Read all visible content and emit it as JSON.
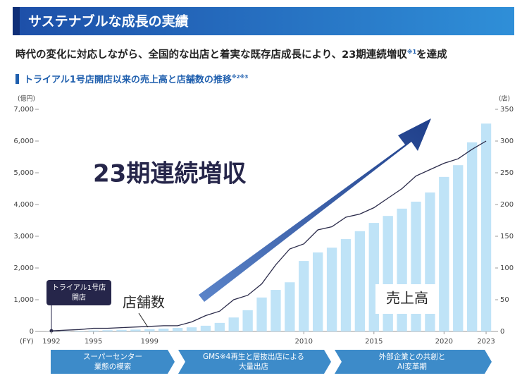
{
  "header": {
    "title": "サステナブルな成長の実績"
  },
  "subtitle": {
    "text": "時代の変化に対応しながら、全国的な出店と着実な既存店成長により、23期連続増収",
    "note": "※1",
    "tail": "を達成"
  },
  "chart_data": {
    "type": "bar_line",
    "title": "トライアル1号店開店以来の売上高と店舗数の推移",
    "title_note": "※2※3",
    "y_unit": "(億円)",
    "y2_unit": "(店)",
    "x_unit": "(FY)",
    "categories": [
      "1992",
      null,
      null,
      "1995",
      null,
      null,
      null,
      "1999",
      null,
      null,
      null,
      null,
      null,
      null,
      null,
      null,
      null,
      null,
      "2010",
      null,
      null,
      null,
      null,
      "2015",
      null,
      null,
      null,
      null,
      "2020",
      null,
      null,
      "2023"
    ],
    "series": [
      {
        "name": "売上高",
        "color": "#bfe3f7",
        "values": [
          5,
          10,
          20,
          30,
          40,
          50,
          60,
          70,
          90,
          110,
          130,
          180,
          270,
          440,
          670,
          1070,
          1310,
          1550,
          2220,
          2490,
          2640,
          2910,
          3160,
          3420,
          3640,
          3870,
          4090,
          4380,
          4870,
          5240,
          5960,
          6550
        ]
      },
      {
        "name": "店舗数",
        "color": "#2b2b4a",
        "axis": "y2",
        "values": [
          1,
          2,
          3,
          5,
          5,
          6,
          7,
          8,
          9,
          9,
          15,
          25,
          32,
          50,
          57,
          75,
          105,
          130,
          138,
          160,
          165,
          180,
          185,
          195,
          210,
          225,
          245,
          255,
          265,
          272,
          287,
          300
        ]
      }
    ],
    "ylim": [
      0,
      7000
    ],
    "yticks": [
      0,
      {
        "value": 1000,
        "label": "1,000"
      },
      {
        "value": 2000,
        "label": "2,000"
      },
      {
        "value": 3000,
        "label": "3,000"
      },
      {
        "value": 4000,
        "label": "4,000"
      },
      {
        "value": 5000,
        "label": "5,000"
      },
      {
        "value": 6000,
        "label": "6,000"
      },
      {
        "value": 7000,
        "label": "7,000"
      }
    ],
    "y2lim": [
      0,
      350
    ],
    "y2ticks": [
      0,
      50,
      100,
      150,
      200,
      250,
      300,
      350
    ],
    "annotations": {
      "headline": "23期連続増収",
      "first_store": [
        "トライアル1号店",
        "開店"
      ]
    },
    "phases": [
      [
        "スーパーセンター",
        "業態の模索"
      ],
      [
        "GMS※4再生と居抜出店による",
        "大量出店"
      ],
      [
        "外部企業との共創と",
        "AI変革期"
      ]
    ]
  }
}
